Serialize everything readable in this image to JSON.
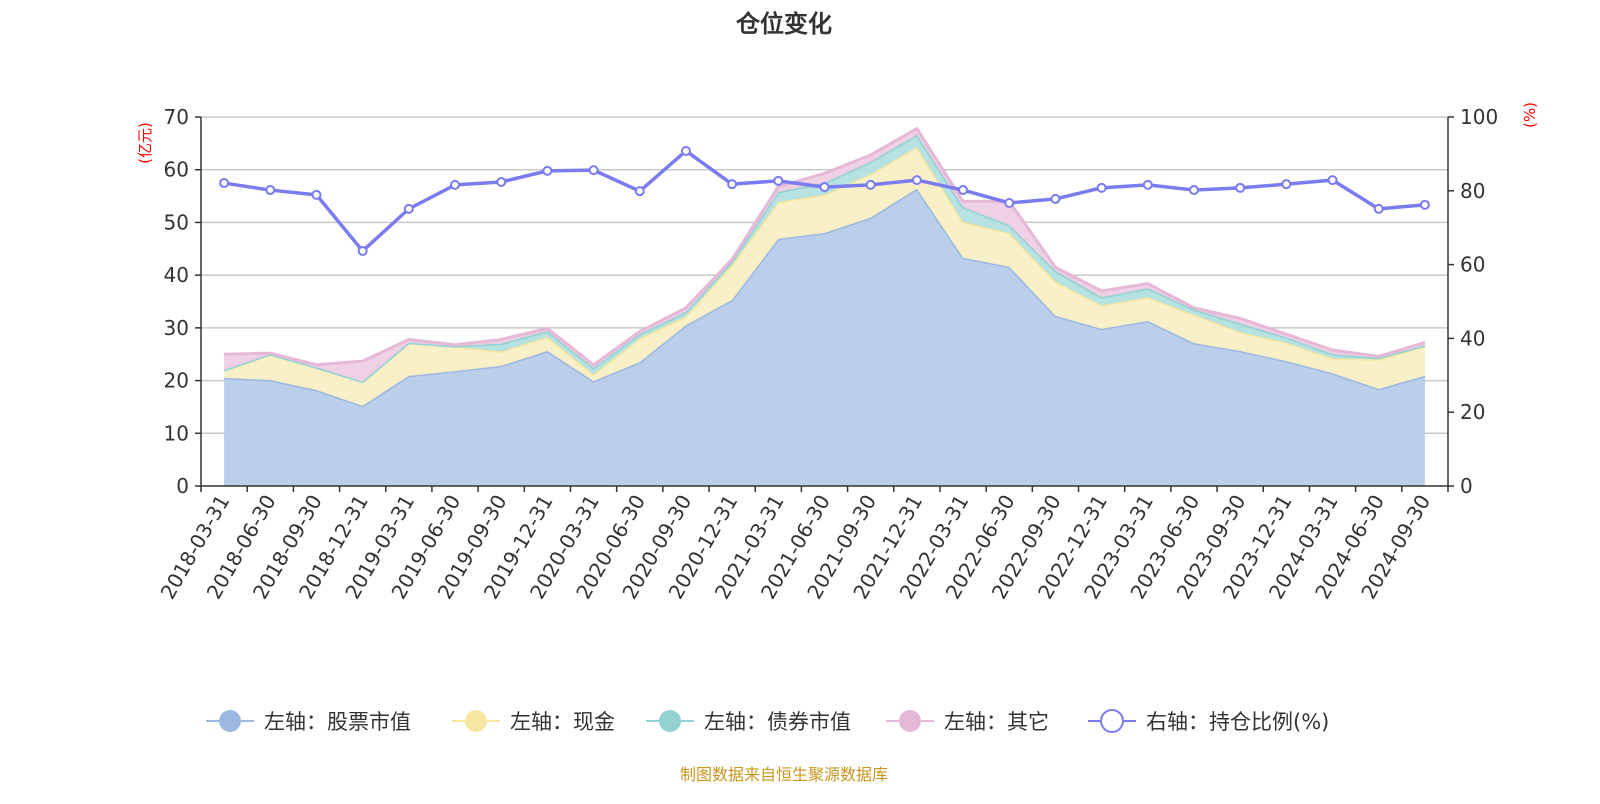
{
  "chart_data": {
    "type": "area",
    "title": "仓位变化",
    "left_axis_label": "(亿元)",
    "right_axis_label": "(%)",
    "left_ylim": [
      0,
      70
    ],
    "left_ticks": [
      0,
      10,
      20,
      30,
      40,
      50,
      60,
      70
    ],
    "right_ylim": [
      0,
      100
    ],
    "right_ticks": [
      0,
      20,
      40,
      60,
      80,
      100
    ],
    "grid": true,
    "stacked": true,
    "legend_position": "bottom",
    "categories": [
      "2018-03-31",
      "2018-06-30",
      "2018-09-30",
      "2018-12-31",
      "2019-03-31",
      "2019-06-30",
      "2019-09-30",
      "2019-12-31",
      "2020-03-31",
      "2020-06-30",
      "2020-09-30",
      "2020-12-31",
      "2021-03-31",
      "2021-06-30",
      "2021-09-30",
      "2021-12-31",
      "2022-03-31",
      "2022-06-30",
      "2022-09-30",
      "2022-12-31",
      "2023-03-31",
      "2023-06-30",
      "2023-09-30",
      "2023-12-31",
      "2024-03-31",
      "2024-06-30",
      "2024-09-30"
    ],
    "series": [
      {
        "name": "左轴：股票市值",
        "axis": "left",
        "type": "area",
        "color": "#9bb8e0",
        "fill": "#b8cce9",
        "values": [
          20.5,
          20.1,
          18.2,
          15.2,
          20.9,
          21.8,
          22.8,
          25.6,
          19.9,
          23.5,
          30.5,
          35.3,
          46.9,
          48.0,
          50.9,
          56.4,
          43.3,
          41.6,
          32.3,
          29.8,
          31.3,
          27.1,
          25.6,
          23.7,
          21.4,
          18.4,
          20.9
        ]
      },
      {
        "name": "左轴：现金",
        "axis": "left",
        "type": "area",
        "color": "#f5e6a0",
        "fill": "#faefc5",
        "values": [
          1.5,
          4.9,
          4.3,
          4.6,
          6.3,
          4.7,
          2.7,
          2.7,
          1.3,
          4.5,
          1.7,
          6.7,
          7.0,
          7.3,
          8.3,
          7.9,
          6.8,
          6.4,
          6.5,
          4.5,
          4.5,
          5.4,
          3.6,
          3.5,
          2.8,
          5.6,
          5.6
        ]
      },
      {
        "name": "左轴：债券市值",
        "axis": "left",
        "type": "area",
        "color": "#92d2d2",
        "fill": "#b3e0e0",
        "values": [
          0,
          0,
          0,
          0,
          0,
          0,
          1.5,
          1.1,
          1.2,
          0.8,
          0.8,
          0.6,
          1.9,
          2.2,
          2.3,
          2.3,
          2.8,
          1.5,
          2.0,
          1.5,
          1.7,
          1.0,
          1.6,
          1.0,
          0.8,
          0.3,
          0.2
        ]
      },
      {
        "name": "左轴：其它",
        "axis": "left",
        "type": "area",
        "color": "#e6b8d8",
        "fill": "#eecde3",
        "values": [
          3.0,
          0.2,
          0.5,
          3.9,
          0.6,
          0.3,
          0.8,
          0.5,
          0.6,
          0.5,
          0.8,
          0.4,
          1.0,
          1.8,
          1.3,
          1.2,
          1.1,
          4.5,
          0.7,
          1.2,
          0.9,
          0.3,
          1.0,
          0.6,
          0.8,
          0.3,
          0.5
        ]
      },
      {
        "name": "右轴：持仓比例(%)",
        "axis": "right",
        "type": "line",
        "color": "#7b7bf0",
        "values": [
          82.1,
          80.2,
          78.9,
          63.7,
          75.1,
          81.6,
          82.4,
          85.4,
          85.6,
          79.9,
          90.8,
          81.8,
          82.7,
          81.0,
          81.6,
          82.9,
          80.2,
          76.7,
          77.8,
          80.8,
          81.6,
          80.2,
          80.8,
          81.8,
          82.9,
          75.1,
          76.2
        ]
      }
    ]
  },
  "footer": {
    "source": "制图数据来自恒生聚源数据库",
    "color": "#c8961e"
  },
  "colors": {
    "axis_label": "#ff0000",
    "text": "#333333",
    "grid": "#cccccc"
  }
}
